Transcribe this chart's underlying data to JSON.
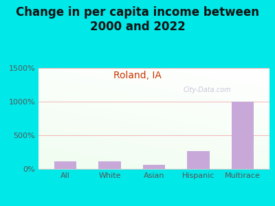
{
  "title": "Change in per capita income between\n2000 and 2022",
  "subtitle": "Roland, IA",
  "categories": [
    "All",
    "White",
    "Asian",
    "Hispanic",
    "Multirace"
  ],
  "values": [
    110,
    110,
    60,
    270,
    1000
  ],
  "bar_color": "#c8a8d8",
  "title_fontsize": 12,
  "subtitle_fontsize": 10,
  "subtitle_color": "#cc3300",
  "title_color": "#111111",
  "background_outer": "#00e8e8",
  "ylim": [
    0,
    1500
  ],
  "ytick_labels": [
    "0%",
    "500%",
    "1000%",
    "1500%"
  ],
  "ytick_values": [
    0,
    500,
    1000,
    1500
  ],
  "watermark": "City-Data.com",
  "grid_color": "#f0a0a0",
  "axis_line_color": "#aaaaaa",
  "tick_label_fontsize": 8,
  "tick_color": "#555555"
}
